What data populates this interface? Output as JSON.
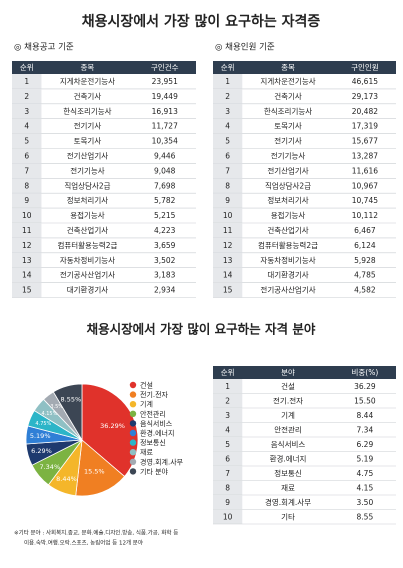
{
  "title": "채용시장에서 가장 많이 요구하는 자격증",
  "table1": {
    "caption": "◎ 채용공고 기준",
    "headers": [
      "순위",
      "종목",
      "구인건수"
    ],
    "rows": [
      [
        "1",
        "지게차운전기능사",
        "23,951"
      ],
      [
        "2",
        "건축기사",
        "19,449"
      ],
      [
        "3",
        "한식조리기능사",
        "16,913"
      ],
      [
        "4",
        "전기기사",
        "11,727"
      ],
      [
        "5",
        "토목기사",
        "10,354"
      ],
      [
        "6",
        "전기산업기사",
        "9,446"
      ],
      [
        "7",
        "전기기능사",
        "9,048"
      ],
      [
        "8",
        "직업상담사2급",
        "7,698"
      ],
      [
        "9",
        "정보처리기사",
        "5,782"
      ],
      [
        "10",
        "용접기능사",
        "5,215"
      ],
      [
        "11",
        "건축산업기사",
        "4,223"
      ],
      [
        "12",
        "컴퓨터활용능력2급",
        "3,659"
      ],
      [
        "13",
        "자동차정비기능사",
        "3,502"
      ],
      [
        "14",
        "전기공사산업기사",
        "3,183"
      ],
      [
        "15",
        "대기환경기사",
        "2,934"
      ]
    ]
  },
  "table2": {
    "caption": "◎ 채용인원 기준",
    "headers": [
      "순위",
      "종목",
      "구인인원"
    ],
    "rows": [
      [
        "1",
        "지게차운전기능사",
        "46,615"
      ],
      [
        "2",
        "건축기사",
        "29,173"
      ],
      [
        "3",
        "한식조리기능사",
        "20,482"
      ],
      [
        "4",
        "토목기사",
        "17,319"
      ],
      [
        "5",
        "전기기사",
        "15,677"
      ],
      [
        "6",
        "전기기능사",
        "13,287"
      ],
      [
        "7",
        "전기산업기사",
        "11,616"
      ],
      [
        "8",
        "직업상담사2급",
        "10,967"
      ],
      [
        "9",
        "정보처리기사",
        "10,745"
      ],
      [
        "10",
        "용접기능사",
        "10,112"
      ],
      [
        "11",
        "건축산업기사",
        "6,467"
      ],
      [
        "12",
        "컴퓨터활용능력2급",
        "6,124"
      ],
      [
        "13",
        "자동차정비기능사",
        "5,928"
      ],
      [
        "14",
        "대기환경기사",
        "4,785"
      ],
      [
        "15",
        "전기공사산업기사",
        "4,582"
      ]
    ]
  },
  "title2": "채용시장에서 가장 많이 요구하는 자격 분야",
  "chart_data": {
    "type": "pie",
    "categories": [
      "건설",
      "전기.전자",
      "기계",
      "안전관리",
      "음식서비스",
      "환경.에너지",
      "정보통신",
      "재료",
      "경영.회계.사무",
      "기타 분야"
    ],
    "values": [
      36.29,
      15.5,
      8.44,
      7.34,
      6.29,
      5.19,
      4.75,
      4.15,
      3.5,
      8.55
    ],
    "value_labels": [
      "36.29%",
      "15.5%",
      "8.44%",
      "7.34%",
      "6.29%",
      "5.19%",
      "4.75%",
      "4.15%",
      "3.5%",
      "8.55%"
    ],
    "colors": [
      "#e0322b",
      "#f07f22",
      "#f4b62a",
      "#7cb342",
      "#1e3a6e",
      "#2f7fd6",
      "#2cb5c8",
      "#8fc0c4",
      "#a3aab2",
      "#3c4654"
    ]
  },
  "table3": {
    "headers": [
      "순위",
      "분야",
      "비중(%)"
    ],
    "rows": [
      [
        "1",
        "건설",
        "36.29"
      ],
      [
        "2",
        "전기.전자",
        "15.50"
      ],
      [
        "3",
        "기계",
        "8.44"
      ],
      [
        "4",
        "안전관리",
        "7.34"
      ],
      [
        "5",
        "음식서비스",
        "6.29"
      ],
      [
        "6",
        "환경.에너지",
        "5.19"
      ],
      [
        "7",
        "정보통신",
        "4.75"
      ],
      [
        "8",
        "재료",
        "4.15"
      ],
      [
        "9",
        "경영.회계.사무",
        "3.50"
      ],
      [
        "10",
        "기타",
        "8.55"
      ]
    ]
  },
  "footnote": [
    "※기타 분야 : 사회복지.종교, 문화.예술.디자인.방송, 식품.가공, 화학 등",
    "이용.숙박.여행.오락.스포츠, 농림어업 등  12개 분야"
  ]
}
